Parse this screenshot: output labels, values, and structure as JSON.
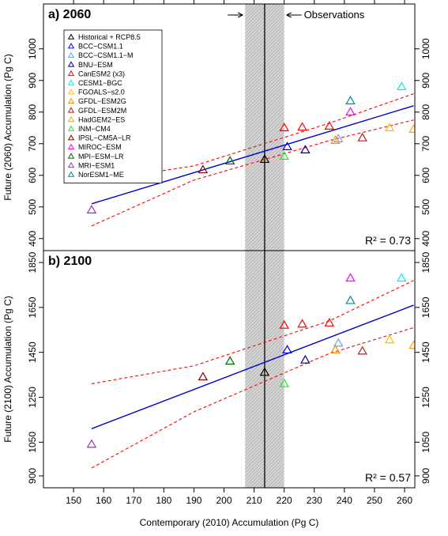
{
  "x_label": "Contemporary (2010)  Accumulation (Pg C)",
  "obs_label": "Observations",
  "chart_data": [
    {
      "type": "scatter",
      "title": "a) 2060",
      "y_label": "Future (2060) Accumulation (Pg C)",
      "r2_label": "R² = 0.73",
      "xlim": [
        140,
        263.4
      ],
      "xticks": [
        150,
        160,
        170,
        180,
        190,
        200,
        210,
        220,
        230,
        240,
        250,
        260
      ],
      "ylim": [
        362,
        1142
      ],
      "yticks": [
        400,
        500,
        600,
        700,
        800,
        900,
        1000
      ],
      "obs_band": [
        207,
        220
      ],
      "obs_value": 213.5,
      "legend": "upper left",
      "series": [
        {
          "name": "Historical + RCP8.5",
          "color": "#000000",
          "x": [
            213.5
          ],
          "values": [
            650
          ]
        },
        {
          "name": "BCC−CSM1.1",
          "color": "#0000ff",
          "x": [
            221
          ],
          "values": [
            690
          ]
        },
        {
          "name": "BCC−CSM1.1−M",
          "color": "#6ca6e0",
          "x": [
            238
          ],
          "values": [
            715
          ]
        },
        {
          "name": "BNU−ESM",
          "color": "#00008b",
          "x": [
            227
          ],
          "values": [
            680
          ]
        },
        {
          "name": "CanESM2 (x3)",
          "color": "#ff0000",
          "x": [
            220,
            226,
            235
          ],
          "values": [
            750,
            752,
            755
          ]
        },
        {
          "name": "CESM1−BGC",
          "color": "#00eeee",
          "x": [
            259
          ],
          "values": [
            880
          ]
        },
        {
          "name": "FGOALS−s2.0",
          "color": "#ffc000",
          "x": [
            255
          ],
          "values": [
            750
          ]
        },
        {
          "name": "GFDL−ESM2G",
          "color": "#ff8c00",
          "x": [
            237
          ],
          "values": [
            710
          ]
        },
        {
          "name": "GFDL−ESM2M",
          "color": "#b22222",
          "x": [
            246
          ],
          "values": [
            718
          ]
        },
        {
          "name": "HadGEM2−ES",
          "color": "#ffa500",
          "x": [
            263
          ],
          "values": [
            745
          ]
        },
        {
          "name": "INM−CM4",
          "color": "#33dd33",
          "x": [
            220
          ],
          "values": [
            660
          ]
        },
        {
          "name": "IPSL−CM5A−LR",
          "color": "#8b0000",
          "x": [
            193
          ],
          "values": [
            617
          ]
        },
        {
          "name": "MIROC−ESM",
          "color": "#ff00ff",
          "x": [
            242
          ],
          "values": [
            800
          ]
        },
        {
          "name": "MPI−ESM−LR",
          "color": "#006400",
          "x": [
            202
          ],
          "values": [
            645
          ]
        },
        {
          "name": "MRI−ESM1",
          "color": "#9932cc",
          "x": [
            156
          ],
          "values": [
            490
          ]
        },
        {
          "name": "NorESM1−ME",
          "color": "#008b8b",
          "x": [
            242
          ],
          "values": [
            835
          ]
        }
      ],
      "fit": {
        "color": "#0000cc",
        "x": [
          156,
          263
        ],
        "values": [
          510,
          820
        ]
      },
      "ci_upper": {
        "color": "#ff0000",
        "x": [
          156,
          190,
          235,
          263
        ],
        "values": [
          580,
          630,
          765,
          858
        ]
      },
      "ci_lower": {
        "color": "#ff0000",
        "x": [
          156,
          190,
          235,
          263
        ],
        "values": [
          440,
          585,
          710,
          775
        ]
      }
    },
    {
      "type": "scatter",
      "title": "b) 2100",
      "y_label": "Future (2100) Accumulation (Pg C)",
      "r2_label": "R² = 0.57",
      "xlim": [
        140,
        263.4
      ],
      "xticks": [
        150,
        160,
        170,
        180,
        190,
        200,
        210,
        220,
        230,
        240,
        250,
        260
      ],
      "ylim": [
        847,
        1903
      ],
      "yticks": [
        900,
        1050,
        1250,
        1450,
        1650,
        1850
      ],
      "obs_band": [
        207,
        220
      ],
      "obs_value": 213.5,
      "series": [
        {
          "color": "#000000",
          "x": [
            213.5
          ],
          "values": [
            1360
          ]
        },
        {
          "color": "#0000ff",
          "x": [
            221
          ],
          "values": [
            1460
          ]
        },
        {
          "color": "#6ca6e0",
          "x": [
            238
          ],
          "values": [
            1490
          ]
        },
        {
          "color": "#00008b",
          "x": [
            227
          ],
          "values": [
            1415
          ]
        },
        {
          "color": "#ff0000",
          "x": [
            220,
            226,
            235
          ],
          "values": [
            1570,
            1575,
            1580
          ]
        },
        {
          "color": "#00eeee",
          "x": [
            259
          ],
          "values": [
            1780
          ]
        },
        {
          "color": "#ffc000",
          "x": [
            255
          ],
          "values": [
            1505
          ]
        },
        {
          "color": "#ff8c00",
          "x": [
            237
          ],
          "values": [
            1460
          ]
        },
        {
          "color": "#b22222",
          "x": [
            246
          ],
          "values": [
            1455
          ]
        },
        {
          "color": "#ffa500",
          "x": [
            263
          ],
          "values": [
            1480
          ]
        },
        {
          "color": "#33dd33",
          "x": [
            220
          ],
          "values": [
            1310
          ]
        },
        {
          "color": "#8b0000",
          "x": [
            193
          ],
          "values": [
            1340
          ]
        },
        {
          "color": "#ff00ff",
          "x": [
            242
          ],
          "values": [
            1780
          ]
        },
        {
          "color": "#006400",
          "x": [
            202
          ],
          "values": [
            1410
          ]
        },
        {
          "color": "#9932cc",
          "x": [
            156
          ],
          "values": [
            1040
          ]
        },
        {
          "color": "#008b8b",
          "x": [
            242
          ],
          "values": [
            1680
          ]
        }
      ],
      "fit": {
        "color": "#0000cc",
        "x": [
          156,
          263
        ],
        "values": [
          1110,
          1660
        ]
      },
      "ci_upper": {
        "color": "#ff0000",
        "x": [
          156,
          190,
          235,
          263
        ],
        "values": [
          1310,
          1390,
          1590,
          1770
        ]
      },
      "ci_lower": {
        "color": "#ff0000",
        "x": [
          156,
          190,
          235,
          263
        ],
        "values": [
          935,
          1185,
          1445,
          1560
        ]
      }
    }
  ]
}
